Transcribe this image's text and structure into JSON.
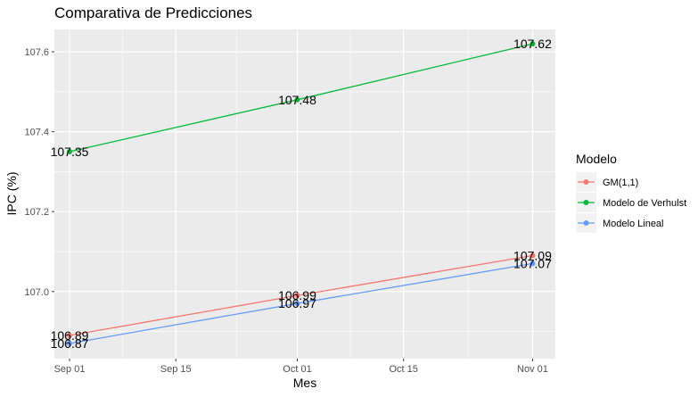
{
  "chart_data": {
    "type": "line",
    "title": "Comparativa de Predicciones",
    "xlabel": "Mes",
    "ylabel": "IPC (%)",
    "x": [
      "2023-09-01",
      "2023-10-01",
      "2023-11-01"
    ],
    "xlim": [
      "2023-08-30",
      "2023-11-04"
    ],
    "ylim": [
      106.832,
      107.656
    ],
    "x_ticks": [
      {
        "date": "2023-09-01",
        "label": "Sep 01"
      },
      {
        "date": "2023-09-15",
        "label": "Sep 15"
      },
      {
        "date": "2023-10-01",
        "label": "Oct 01"
      },
      {
        "date": "2023-10-15",
        "label": "Oct 15"
      },
      {
        "date": "2023-11-01",
        "label": "Nov 01"
      }
    ],
    "y_ticks": [
      107.0,
      107.2,
      107.4,
      107.6
    ],
    "y_tick_labels": [
      "107.0",
      "107.2",
      "107.4",
      "107.6"
    ],
    "grid": true,
    "legend": {
      "title": "Modelo",
      "position": "right"
    },
    "series": [
      {
        "name": "GM(1,1)",
        "color": "#F8766D",
        "values": [
          106.89,
          106.99,
          107.09
        ],
        "labels": [
          "106.89",
          "106.99",
          "107.09"
        ]
      },
      {
        "name": "Modelo de Verhulst",
        "color": "#00BA38",
        "values": [
          107.35,
          107.48,
          107.62
        ],
        "labels": [
          "107.35",
          "107.48",
          "107.62"
        ]
      },
      {
        "name": "Modelo Lineal",
        "color": "#619CFF",
        "values": [
          106.87,
          106.97,
          107.07
        ],
        "labels": [
          "106.87",
          "106.97",
          "107.07"
        ]
      }
    ]
  }
}
